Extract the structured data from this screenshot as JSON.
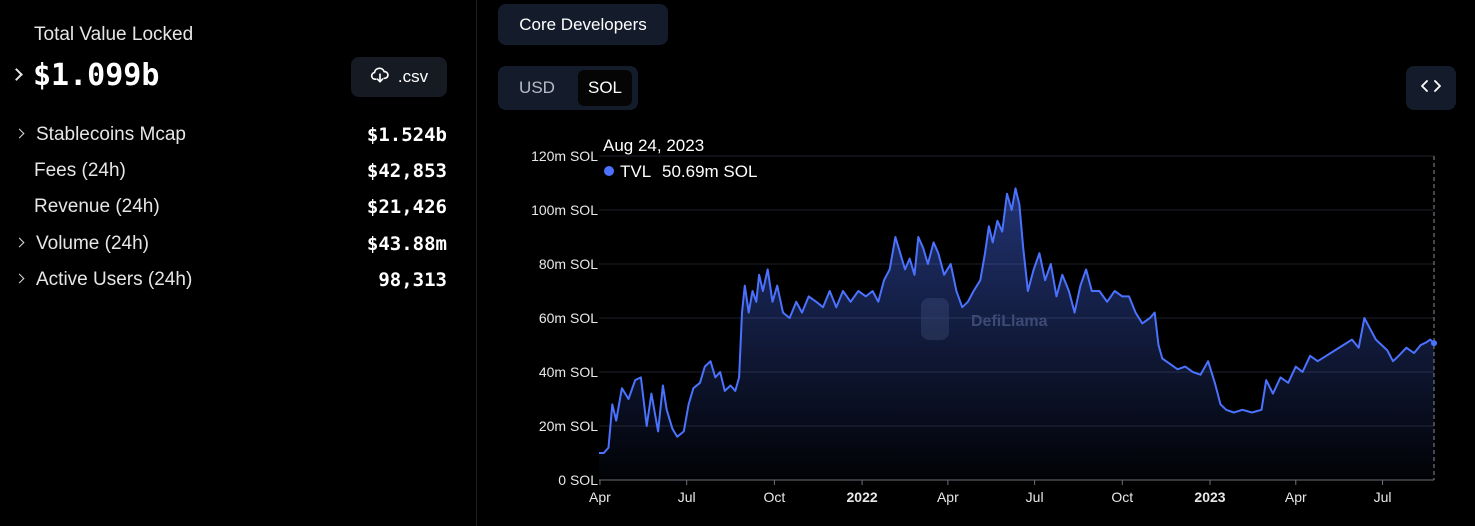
{
  "overview": {
    "tvl_label": "Total Value Locked",
    "tvl_value": "$1.099b",
    "csv_label": ".csv",
    "metrics": [
      {
        "label": "Stablecoins Mcap",
        "value": "$1.524b",
        "expandable": true
      },
      {
        "label": "Fees (24h)",
        "value": "$42,853",
        "expandable": false
      },
      {
        "label": "Revenue (24h)",
        "value": "$21,426",
        "expandable": false
      },
      {
        "label": "Volume (24h)",
        "value": "$43.88m",
        "expandable": true
      },
      {
        "label": "Active Users (24h)",
        "value": "98,313",
        "expandable": true
      }
    ]
  },
  "controls": {
    "core_developers": "Core Developers",
    "currency_options": [
      "USD",
      "SOL"
    ],
    "currency_selected": "SOL"
  },
  "colors": {
    "line": "#4a72ff",
    "background": "#000000",
    "panel": "#141c2c"
  },
  "chart_data": {
    "type": "area",
    "watermark": "DefiLlama",
    "ylim": [
      0,
      120
    ],
    "y_ticks": [
      "0 SOL",
      "20m SOL",
      "40m SOL",
      "60m SOL",
      "80m SOL",
      "100m SOL",
      "120m SOL"
    ],
    "x_ticks": [
      {
        "date": "2021-04-01",
        "label": "Apr",
        "bold": false
      },
      {
        "date": "2021-07-01",
        "label": "Jul",
        "bold": false
      },
      {
        "date": "2021-10-01",
        "label": "Oct",
        "bold": false
      },
      {
        "date": "2022-01-01",
        "label": "2022",
        "bold": true
      },
      {
        "date": "2022-04-01",
        "label": "Apr",
        "bold": false
      },
      {
        "date": "2022-07-01",
        "label": "Jul",
        "bold": false
      },
      {
        "date": "2022-10-01",
        "label": "Oct",
        "bold": false
      },
      {
        "date": "2023-01-01",
        "label": "2023",
        "bold": true
      },
      {
        "date": "2023-04-01",
        "label": "Apr",
        "bold": false
      },
      {
        "date": "2023-07-01",
        "label": "Jul",
        "bold": false
      }
    ],
    "tooltip": {
      "date": "Aug 24, 2023",
      "series": "TVL",
      "value": "50.69m SOL"
    },
    "series": [
      {
        "name": "TVL",
        "unit": "m SOL",
        "points": [
          [
            "2021-03-31",
            10
          ],
          [
            "2021-04-05",
            10
          ],
          [
            "2021-04-10",
            12
          ],
          [
            "2021-04-14",
            28
          ],
          [
            "2021-04-18",
            22
          ],
          [
            "2021-04-24",
            34
          ],
          [
            "2021-05-01",
            30
          ],
          [
            "2021-05-08",
            37
          ],
          [
            "2021-05-14",
            38
          ],
          [
            "2021-05-20",
            20
          ],
          [
            "2021-05-25",
            32
          ],
          [
            "2021-06-01",
            18
          ],
          [
            "2021-06-06",
            35
          ],
          [
            "2021-06-10",
            26
          ],
          [
            "2021-06-16",
            19
          ],
          [
            "2021-06-21",
            16
          ],
          [
            "2021-06-28",
            18
          ],
          [
            "2021-07-03",
            28
          ],
          [
            "2021-07-08",
            34
          ],
          [
            "2021-07-15",
            36
          ],
          [
            "2021-07-20",
            42
          ],
          [
            "2021-07-26",
            44
          ],
          [
            "2021-07-31",
            38
          ],
          [
            "2021-08-05",
            40
          ],
          [
            "2021-08-10",
            33
          ],
          [
            "2021-08-16",
            35
          ],
          [
            "2021-08-21",
            33
          ],
          [
            "2021-08-25",
            38
          ],
          [
            "2021-08-28",
            62
          ],
          [
            "2021-08-31",
            72
          ],
          [
            "2021-09-04",
            62
          ],
          [
            "2021-09-08",
            70
          ],
          [
            "2021-09-12",
            66
          ],
          [
            "2021-09-15",
            76
          ],
          [
            "2021-09-19",
            70
          ],
          [
            "2021-09-24",
            78
          ],
          [
            "2021-09-29",
            66
          ],
          [
            "2021-10-04",
            72
          ],
          [
            "2021-10-10",
            62
          ],
          [
            "2021-10-17",
            60
          ],
          [
            "2021-10-24",
            66
          ],
          [
            "2021-10-30",
            62
          ],
          [
            "2021-11-06",
            68
          ],
          [
            "2021-11-14",
            66
          ],
          [
            "2021-11-21",
            64
          ],
          [
            "2021-11-28",
            70
          ],
          [
            "2021-12-05",
            64
          ],
          [
            "2021-12-12",
            70
          ],
          [
            "2021-12-20",
            66
          ],
          [
            "2021-12-28",
            70
          ],
          [
            "2022-01-05",
            68
          ],
          [
            "2022-01-12",
            70
          ],
          [
            "2022-01-18",
            66
          ],
          [
            "2022-01-24",
            74
          ],
          [
            "2022-01-30",
            78
          ],
          [
            "2022-02-05",
            90
          ],
          [
            "2022-02-10",
            84
          ],
          [
            "2022-02-15",
            78
          ],
          [
            "2022-02-20",
            82
          ],
          [
            "2022-02-25",
            76
          ],
          [
            "2022-03-01",
            90
          ],
          [
            "2022-03-06",
            86
          ],
          [
            "2022-03-11",
            80
          ],
          [
            "2022-03-17",
            88
          ],
          [
            "2022-03-22",
            84
          ],
          [
            "2022-03-28",
            76
          ],
          [
            "2022-04-04",
            80
          ],
          [
            "2022-04-10",
            70
          ],
          [
            "2022-04-16",
            64
          ],
          [
            "2022-04-22",
            66
          ],
          [
            "2022-04-28",
            70
          ],
          [
            "2022-05-05",
            74
          ],
          [
            "2022-05-10",
            84
          ],
          [
            "2022-05-14",
            94
          ],
          [
            "2022-05-18",
            88
          ],
          [
            "2022-05-23",
            96
          ],
          [
            "2022-05-28",
            92
          ],
          [
            "2022-06-02",
            106
          ],
          [
            "2022-06-07",
            100
          ],
          [
            "2022-06-11",
            108
          ],
          [
            "2022-06-15",
            102
          ],
          [
            "2022-06-19",
            86
          ],
          [
            "2022-06-24",
            70
          ],
          [
            "2022-06-30",
            78
          ],
          [
            "2022-07-06",
            84
          ],
          [
            "2022-07-12",
            74
          ],
          [
            "2022-07-18",
            80
          ],
          [
            "2022-07-24",
            68
          ],
          [
            "2022-07-30",
            76
          ],
          [
            "2022-08-06",
            70
          ],
          [
            "2022-08-12",
            62
          ],
          [
            "2022-08-18",
            72
          ],
          [
            "2022-08-24",
            78
          ],
          [
            "2022-08-30",
            70
          ],
          [
            "2022-09-07",
            70
          ],
          [
            "2022-09-15",
            66
          ],
          [
            "2022-09-23",
            70
          ],
          [
            "2022-10-01",
            68
          ],
          [
            "2022-10-08",
            68
          ],
          [
            "2022-10-15",
            62
          ],
          [
            "2022-10-22",
            58
          ],
          [
            "2022-10-30",
            60
          ],
          [
            "2022-11-04",
            62
          ],
          [
            "2022-11-08",
            50
          ],
          [
            "2022-11-12",
            45
          ],
          [
            "2022-11-20",
            43
          ],
          [
            "2022-11-28",
            41
          ],
          [
            "2022-12-06",
            42
          ],
          [
            "2022-12-14",
            40
          ],
          [
            "2022-12-22",
            39
          ],
          [
            "2022-12-30",
            44
          ],
          [
            "2023-01-06",
            36
          ],
          [
            "2023-01-12",
            28
          ],
          [
            "2023-01-18",
            26
          ],
          [
            "2023-01-26",
            25
          ],
          [
            "2023-02-04",
            26
          ],
          [
            "2023-02-14",
            25
          ],
          [
            "2023-02-24",
            26
          ],
          [
            "2023-03-01",
            37
          ],
          [
            "2023-03-08",
            32
          ],
          [
            "2023-03-16",
            38
          ],
          [
            "2023-03-24",
            36
          ],
          [
            "2023-04-01",
            42
          ],
          [
            "2023-04-08",
            40
          ],
          [
            "2023-04-16",
            46
          ],
          [
            "2023-04-24",
            44
          ],
          [
            "2023-05-03",
            46
          ],
          [
            "2023-05-12",
            48
          ],
          [
            "2023-05-21",
            50
          ],
          [
            "2023-05-30",
            52
          ],
          [
            "2023-06-06",
            49
          ],
          [
            "2023-06-12",
            60
          ],
          [
            "2023-06-18",
            56
          ],
          [
            "2023-06-24",
            52
          ],
          [
            "2023-06-30",
            50
          ],
          [
            "2023-07-06",
            48
          ],
          [
            "2023-07-12",
            44
          ],
          [
            "2023-07-18",
            46
          ],
          [
            "2023-07-26",
            49
          ],
          [
            "2023-08-03",
            47
          ],
          [
            "2023-08-10",
            50
          ],
          [
            "2023-08-16",
            51
          ],
          [
            "2023-08-20",
            52
          ],
          [
            "2023-08-24",
            50.69
          ]
        ]
      }
    ]
  }
}
